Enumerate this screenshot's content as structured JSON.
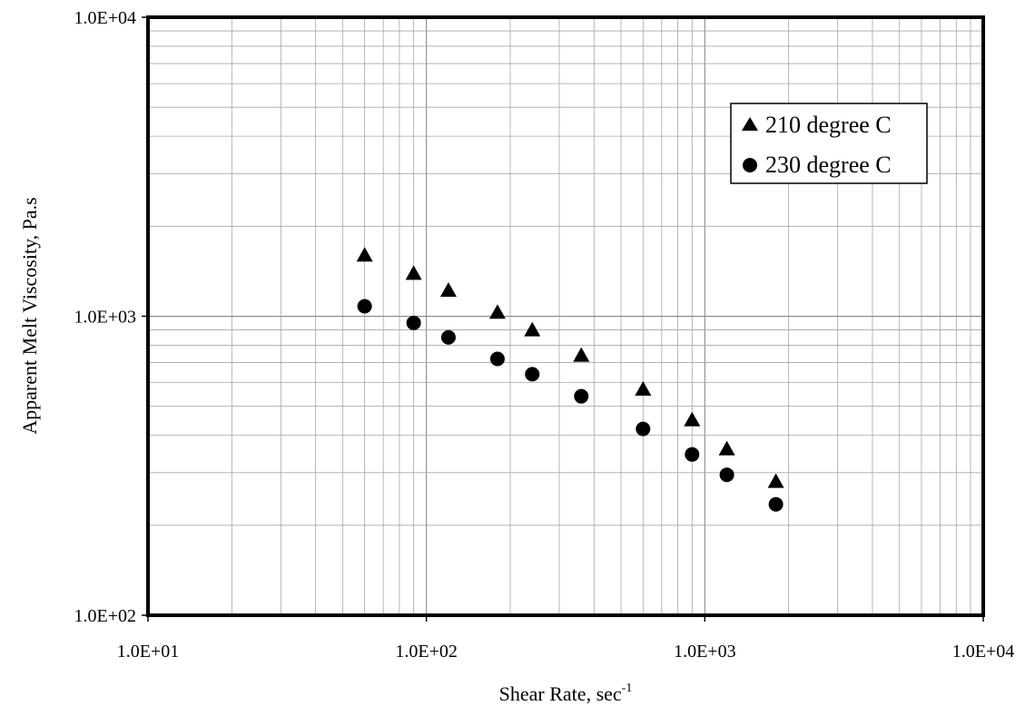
{
  "chart_data": {
    "type": "scatter",
    "title": "",
    "xlabel": "Shear Rate, sec",
    "xlabel_superscript": "-1",
    "ylabel": "Apparent Melt Viscosity, Pa.s",
    "xscale": "log",
    "yscale": "log",
    "xlim": [
      10,
      10000
    ],
    "ylim": [
      100,
      10000
    ],
    "x_tick_labels": [
      "1.0E+01",
      "1.0E+02",
      "1.0E+03",
      "1.0E+04"
    ],
    "y_tick_labels": [
      "1.0E+02",
      "1.0E+03",
      "1.0E+04"
    ],
    "grid": true,
    "legend_position": "top-right",
    "series": [
      {
        "name": "210 degree C",
        "marker": "triangle",
        "color": "#000000",
        "x": [
          60,
          90,
          120,
          180,
          240,
          360,
          600,
          900,
          1200,
          1800
        ],
        "y": [
          1600,
          1390,
          1220,
          1030,
          900,
          740,
          570,
          450,
          360,
          280
        ]
      },
      {
        "name": "230 degree C",
        "marker": "circle",
        "color": "#000000",
        "x": [
          60,
          90,
          120,
          180,
          240,
          360,
          600,
          900,
          1200,
          1800
        ],
        "y": [
          1080,
          950,
          850,
          720,
          640,
          540,
          420,
          345,
          295,
          235
        ]
      }
    ]
  }
}
